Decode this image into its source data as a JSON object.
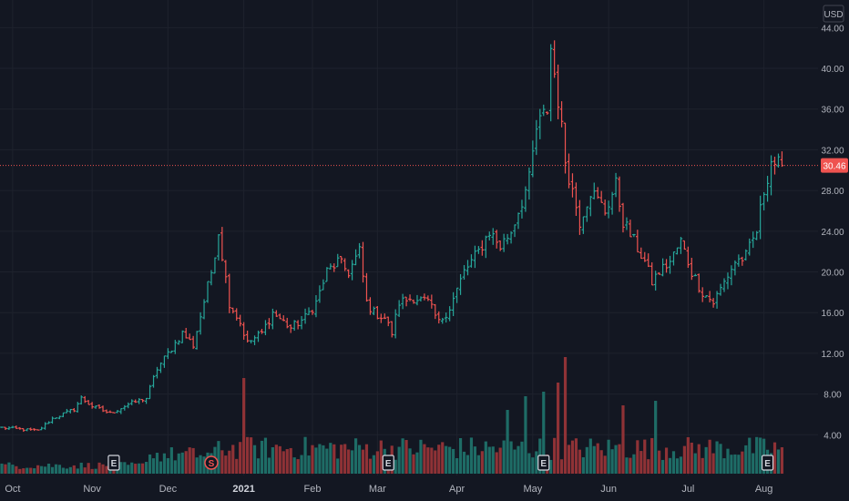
{
  "currency_label": "USD",
  "last_price": "30.46",
  "colors": {
    "up": "#26a69a",
    "down": "#ef5350",
    "bg": "#131722",
    "grid": "#1e222d",
    "price_line": "#ef5350",
    "volume_up": "#1e6c66",
    "volume_down": "#8f3236"
  },
  "chart_data": {
    "type": "candlestick-ohlc",
    "y_axis_ticks": [
      "4.00",
      "8.00",
      "12.00",
      "16.00",
      "20.00",
      "24.00",
      "28.00",
      "32.00",
      "36.00",
      "40.00",
      "44.00"
    ],
    "ylim": [
      0,
      46
    ],
    "x_axis_labels": [
      {
        "label": "Oct",
        "index": 3,
        "bold": false
      },
      {
        "label": "Nov",
        "index": 25,
        "bold": false
      },
      {
        "label": "Dec",
        "index": 46,
        "bold": false
      },
      {
        "label": "2021",
        "index": 67,
        "bold": true
      },
      {
        "label": "Feb",
        "index": 86,
        "bold": false
      },
      {
        "label": "Mar",
        "index": 104,
        "bold": false
      },
      {
        "label": "Apr",
        "index": 126,
        "bold": false
      },
      {
        "label": "May",
        "index": 147,
        "bold": false
      },
      {
        "label": "Jun",
        "index": 168,
        "bold": false
      },
      {
        "label": "Jul",
        "index": 190,
        "bold": false
      },
      {
        "label": "Aug",
        "index": 211,
        "bold": false
      }
    ],
    "events": [
      {
        "type": "E",
        "index": 31
      },
      {
        "type": "S",
        "index": 58
      },
      {
        "type": "E",
        "index": 107
      },
      {
        "type": "E",
        "index": 150
      },
      {
        "type": "E",
        "index": 212
      }
    ],
    "close_anchors": [
      [
        0,
        4.7
      ],
      [
        10,
        4.4
      ],
      [
        14,
        5.6
      ],
      [
        20,
        6.5
      ],
      [
        22,
        7.6
      ],
      [
        25,
        6.8
      ],
      [
        30,
        6.1
      ],
      [
        35,
        7.0
      ],
      [
        40,
        7.6
      ],
      [
        43,
        10.5
      ],
      [
        46,
        12.0
      ],
      [
        50,
        14.0
      ],
      [
        53,
        12.8
      ],
      [
        58,
        20.0
      ],
      [
        60,
        24.0
      ],
      [
        63,
        17.0
      ],
      [
        66,
        15.0
      ],
      [
        68,
        13.0
      ],
      [
        72,
        14.0
      ],
      [
        75,
        16.0
      ],
      [
        80,
        14.5
      ],
      [
        84,
        15.5
      ],
      [
        87,
        17.0
      ],
      [
        90,
        20.0
      ],
      [
        93,
        21.0
      ],
      [
        96,
        20.0
      ],
      [
        99,
        22.0
      ],
      [
        101,
        17.0
      ],
      [
        103,
        16.0
      ],
      [
        106,
        15.5
      ],
      [
        108,
        14.0
      ],
      [
        110,
        17.0
      ],
      [
        114,
        17.5
      ],
      [
        118,
        17.0
      ],
      [
        121,
        15.0
      ],
      [
        124,
        16.5
      ],
      [
        128,
        20.0
      ],
      [
        132,
        22.0
      ],
      [
        135,
        24.0
      ],
      [
        138,
        22.5
      ],
      [
        141,
        24.0
      ],
      [
        144,
        27.0
      ],
      [
        146,
        29.0
      ],
      [
        148,
        34.0
      ],
      [
        151,
        36.0
      ],
      [
        152,
        42.0
      ],
      [
        154,
        37.0
      ],
      [
        156,
        31.0
      ],
      [
        158,
        28.0
      ],
      [
        160,
        25.0
      ],
      [
        163,
        28.0
      ],
      [
        167,
        26.0
      ],
      [
        170,
        28.5
      ],
      [
        172,
        25.0
      ],
      [
        175,
        23.0
      ],
      [
        178,
        21.0
      ],
      [
        180,
        19.0
      ],
      [
        182,
        20.0
      ],
      [
        185,
        21.0
      ],
      [
        188,
        23.0
      ],
      [
        191,
        20.0
      ],
      [
        194,
        18.0
      ],
      [
        197,
        17.0
      ],
      [
        200,
        19.0
      ],
      [
        203,
        21.0
      ],
      [
        206,
        21.5
      ],
      [
        209,
        24.0
      ],
      [
        211,
        28.0
      ],
      [
        213,
        31.0
      ],
      [
        215,
        30.5
      ],
      [
        216,
        30.46
      ]
    ],
    "volume_spikes": [
      [
        67,
        10.5
      ],
      [
        156,
        12.8
      ],
      [
        154,
        10.0
      ],
      [
        150,
        9.0
      ],
      [
        181,
        8.0
      ],
      [
        145,
        8.5
      ],
      [
        140,
        7.0
      ],
      [
        172,
        7.5
      ]
    ]
  }
}
